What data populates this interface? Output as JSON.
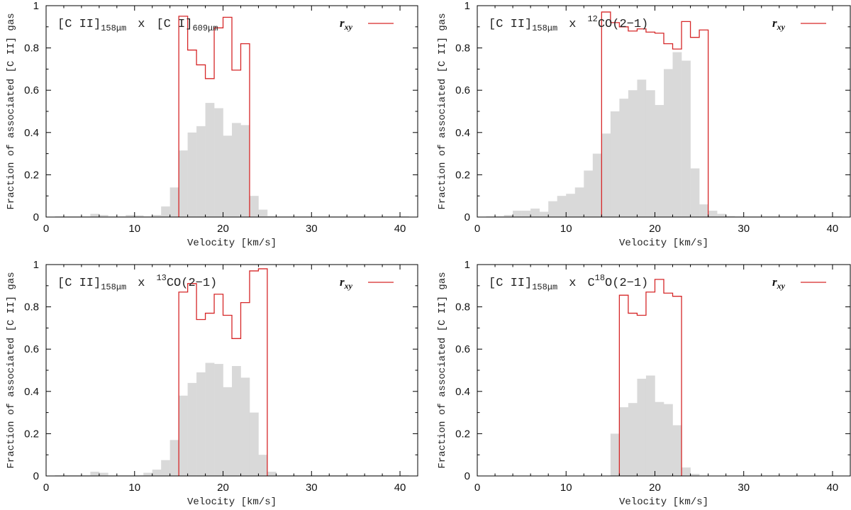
{
  "colors": {
    "histogram": "#d9d9d9",
    "rxy": "#d62728",
    "axis": "#000000"
  },
  "chart_data": [
    {
      "type": "bar",
      "title": {
        "line": "[C II]",
        "line_sub": "158μm",
        "op": "x",
        "species": "[C I]",
        "species_sup": "",
        "species_rest": "",
        "species_sub": "609μm"
      },
      "xlabel": "Velocity [km/s]",
      "ylabel": "Fraction of associated [C II] gas",
      "xlim": [
        0,
        42
      ],
      "ylim": [
        0,
        1
      ],
      "xticks": [
        0,
        10,
        20,
        30,
        40
      ],
      "yticks": [
        0,
        0.2,
        0.4,
        0.6,
        0.8,
        1
      ],
      "ytick_labels": [
        "0",
        "0.2",
        "0.4",
        "0.6",
        "0.8",
        "1"
      ],
      "legend": {
        "label": "r",
        "label_sub": "xy",
        "position": "top-right"
      },
      "bin_width": 1,
      "histogram": {
        "x": [
          1,
          2,
          3,
          4,
          5,
          6,
          7,
          8,
          9,
          10,
          11,
          12,
          13,
          14,
          15,
          16,
          17,
          18,
          19,
          20,
          21,
          22,
          23,
          24,
          25,
          26,
          27,
          28,
          29,
          30,
          31,
          32,
          33,
          34,
          35,
          36,
          37,
          38,
          39,
          40
        ],
        "values": [
          0.003,
          0.003,
          0.003,
          0.003,
          0.015,
          0.01,
          0.003,
          0.003,
          0.01,
          0.008,
          0.003,
          0.01,
          0.05,
          0.14,
          0.315,
          0.4,
          0.43,
          0.54,
          0.515,
          0.385,
          0.445,
          0.435,
          0.1,
          0.035,
          0.005,
          0.003,
          0.003,
          0.003,
          0.003,
          0.003,
          0.003,
          0.003,
          0.003,
          0.003,
          0.003,
          0.003,
          0.003,
          0.003,
          0.003,
          0.003
        ]
      },
      "rxy": {
        "x": [
          15,
          16,
          17,
          18,
          19,
          20,
          21,
          22
        ],
        "values": [
          0.95,
          0.79,
          0.72,
          0.655,
          0.895,
          0.945,
          0.695,
          0.82
        ]
      }
    },
    {
      "type": "bar",
      "title": {
        "line": "[C II]",
        "line_sub": "158μm",
        "op": "x",
        "species": "",
        "species_sup": "12",
        "species_rest": "CO(2−1)",
        "species_sub": ""
      },
      "xlabel": "Velocity [km/s]",
      "ylabel": "Fraction of associated [C II] gas",
      "xlim": [
        0,
        42
      ],
      "ylim": [
        0,
        1
      ],
      "xticks": [
        0,
        10,
        20,
        30,
        40
      ],
      "yticks": [
        0,
        0.2,
        0.4,
        0.6,
        0.8,
        1
      ],
      "ytick_labels": [
        "0",
        "0.2",
        "0.4",
        "0.6",
        "0.8",
        "1"
      ],
      "legend": {
        "label": "r",
        "label_sub": "xy",
        "position": "top-right"
      },
      "bin_width": 1,
      "histogram": {
        "x": [
          1,
          2,
          3,
          4,
          5,
          6,
          7,
          8,
          9,
          10,
          11,
          12,
          13,
          14,
          15,
          16,
          17,
          18,
          19,
          20,
          21,
          22,
          23,
          24,
          25,
          26,
          27,
          28,
          29,
          30,
          31,
          32,
          33,
          34,
          35,
          36,
          37,
          38,
          39,
          40
        ],
        "values": [
          0.003,
          0.003,
          0.01,
          0.03,
          0.03,
          0.04,
          0.025,
          0.075,
          0.1,
          0.11,
          0.14,
          0.22,
          0.3,
          0.395,
          0.5,
          0.56,
          0.6,
          0.65,
          0.6,
          0.53,
          0.7,
          0.78,
          0.74,
          0.23,
          0.06,
          0.03,
          0.015,
          0.005,
          0.003,
          0.003,
          0.003,
          0.003,
          0.003,
          0.003,
          0.003,
          0.003,
          0.003,
          0.003,
          0.003,
          0.003
        ]
      },
      "rxy": {
        "x": [
          14,
          15,
          16,
          17,
          18,
          19,
          20,
          21,
          22,
          23,
          24,
          25
        ],
        "values": [
          0.97,
          0.92,
          0.9,
          0.88,
          0.89,
          0.875,
          0.87,
          0.82,
          0.795,
          0.925,
          0.85,
          0.885
        ]
      }
    },
    {
      "type": "bar",
      "title": {
        "line": "[C II]",
        "line_sub": "158μm",
        "op": "x",
        "species": "",
        "species_sup": "13",
        "species_rest": "CO(2−1)",
        "species_sub": ""
      },
      "xlabel": "Velocity [km/s]",
      "ylabel": "Fraction of associated [C II] gas",
      "xlim": [
        0,
        42
      ],
      "ylim": [
        0,
        1
      ],
      "xticks": [
        0,
        10,
        20,
        30,
        40
      ],
      "yticks": [
        0,
        0.2,
        0.4,
        0.6,
        0.8,
        1
      ],
      "ytick_labels": [
        "0",
        "0.2",
        "0.4",
        "0.6",
        "0.8",
        "1"
      ],
      "legend": {
        "label": "r",
        "label_sub": "xy",
        "position": "top-right"
      },
      "bin_width": 1,
      "histogram": {
        "x": [
          1,
          2,
          3,
          4,
          5,
          6,
          7,
          8,
          9,
          10,
          11,
          12,
          13,
          14,
          15,
          16,
          17,
          18,
          19,
          20,
          21,
          22,
          23,
          24,
          25,
          26,
          27,
          28,
          29,
          30,
          31,
          32,
          33,
          34,
          35,
          36,
          37,
          38,
          39,
          40
        ],
        "values": [
          0.003,
          0.003,
          0.003,
          0.003,
          0.02,
          0.015,
          0.003,
          0.003,
          0.003,
          0.003,
          0.015,
          0.03,
          0.075,
          0.17,
          0.38,
          0.44,
          0.49,
          0.535,
          0.53,
          0.42,
          0.52,
          0.465,
          0.3,
          0.1,
          0.02,
          0.003,
          0.003,
          0.003,
          0.003,
          0.003,
          0.003,
          0.003,
          0.003,
          0.003,
          0.003,
          0.003,
          0.003,
          0.003,
          0.003,
          0.003
        ]
      },
      "rxy": {
        "x": [
          15,
          16,
          17,
          18,
          19,
          20,
          21,
          22,
          23,
          24
        ],
        "values": [
          0.87,
          0.91,
          0.74,
          0.77,
          0.86,
          0.76,
          0.65,
          0.82,
          0.97,
          0.98
        ]
      }
    },
    {
      "type": "bar",
      "title": {
        "line": "[C II]",
        "line_sub": "158μm",
        "op": "x",
        "species": "C",
        "species_sup": "18",
        "species_rest": "O(2−1)",
        "species_sub": ""
      },
      "xlabel": "Velocity [km/s]",
      "ylabel": "Fraction of associated [C II] gas",
      "xlim": [
        0,
        42
      ],
      "ylim": [
        0,
        1
      ],
      "xticks": [
        0,
        10,
        20,
        30,
        40
      ],
      "yticks": [
        0,
        0.2,
        0.4,
        0.6,
        0.8,
        1
      ],
      "ytick_labels": [
        "0",
        "0.2",
        "0.4",
        "0.6",
        "0.8",
        "1"
      ],
      "legend": {
        "label": "r",
        "label_sub": "xy",
        "position": "top-right"
      },
      "bin_width": 1,
      "histogram": {
        "x": [
          1,
          2,
          3,
          4,
          5,
          6,
          7,
          8,
          9,
          10,
          11,
          12,
          13,
          14,
          15,
          16,
          17,
          18,
          19,
          20,
          21,
          22,
          23,
          24,
          25,
          26,
          27,
          28,
          29,
          30,
          31,
          32,
          33,
          34,
          35,
          36,
          37,
          38,
          39,
          40
        ],
        "values": [
          0,
          0,
          0,
          0,
          0,
          0,
          0,
          0,
          0,
          0,
          0,
          0,
          0,
          0,
          0.2,
          0.325,
          0.345,
          0.46,
          0.475,
          0.35,
          0.34,
          0.24,
          0.04,
          0.01,
          0,
          0,
          0,
          0,
          0,
          0,
          0,
          0,
          0,
          0,
          0,
          0,
          0,
          0,
          0,
          0
        ]
      },
      "rxy": {
        "x": [
          16,
          17,
          18,
          19,
          20,
          21,
          22
        ],
        "values": [
          0.855,
          0.77,
          0.76,
          0.87,
          0.93,
          0.865,
          0.85
        ]
      }
    }
  ]
}
